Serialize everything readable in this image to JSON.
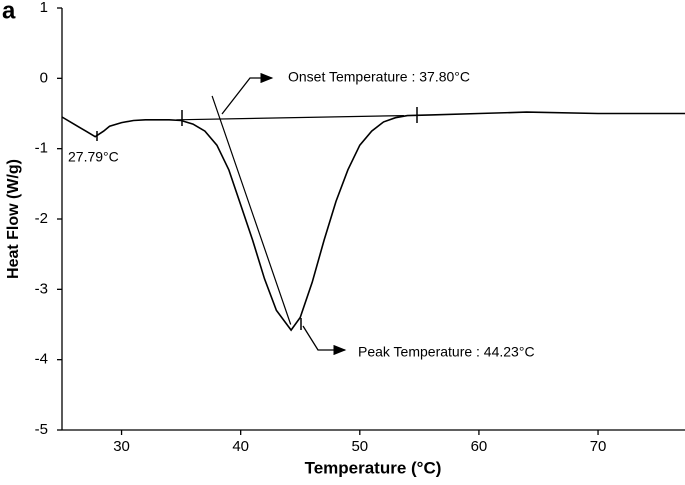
{
  "chart_data": {
    "type": "line",
    "panel_label": "a",
    "x_label": "Temperature (°C)",
    "y_label": "Heat Flow (W/g)",
    "xlim": [
      25,
      77.3
    ],
    "xticks": [
      30,
      40,
      50,
      60,
      70
    ],
    "ylim": [
      -5,
      1
    ],
    "yticks": [
      1,
      0,
      -1,
      -2,
      -3,
      -4,
      -5
    ],
    "annotations": [
      "Onset Temperature : 37.80°C",
      "Peak Temperature : 44.23°C",
      "27.79°C"
    ],
    "series": [
      {
        "color": "#000000",
        "x": [
          25,
          26,
          27,
          27.79,
          28.5,
          29,
          30,
          31,
          32,
          34,
          35,
          36,
          37,
          38,
          39,
          40,
          41,
          42,
          43,
          44.23,
          45,
          46,
          47,
          48,
          49,
          50,
          51,
          52,
          53,
          54,
          56,
          60,
          64,
          70,
          77.3
        ],
        "values": [
          -0.55,
          -0.65,
          -0.75,
          -0.83,
          -0.75,
          -0.68,
          -0.63,
          -0.6,
          -0.59,
          -0.59,
          -0.6,
          -0.65,
          -0.75,
          -0.95,
          -1.3,
          -1.8,
          -2.3,
          -2.85,
          -3.3,
          -3.58,
          -3.4,
          -2.9,
          -2.3,
          -1.75,
          -1.3,
          -0.95,
          -0.75,
          -0.62,
          -0.56,
          -0.53,
          -0.52,
          -0.5,
          -0.48,
          -0.5,
          -0.5
        ]
      },
      {
        "color": "#000000",
        "x": [
          34.6,
          53.7
        ],
        "values": [
          -0.59,
          -0.53
        ]
      },
      {
        "color": "#000000",
        "x": [
          37.6,
          44.2
        ],
        "values": [
          -0.25,
          -3.5
        ]
      }
    ]
  }
}
